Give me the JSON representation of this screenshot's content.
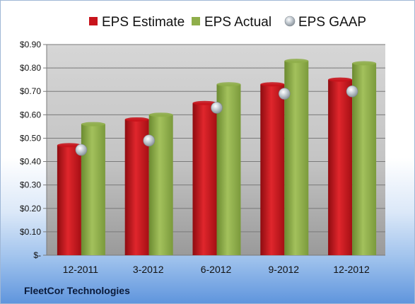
{
  "company": "FleetCor Technologies",
  "colors": {
    "estimate": "#c8141c",
    "actual": "#8fae4a",
    "gaap": "#b8c2cc"
  },
  "chart_data": {
    "type": "bar",
    "categories": [
      "12-2011",
      "3-2012",
      "6-2012",
      "9-2012",
      "12-2012"
    ],
    "series": [
      {
        "name": "EPS Estimate",
        "type": "bar",
        "values": [
          0.47,
          0.58,
          0.65,
          0.73,
          0.75
        ]
      },
      {
        "name": "EPS Actual",
        "type": "bar",
        "values": [
          0.56,
          0.6,
          0.73,
          0.83,
          0.82
        ]
      },
      {
        "name": "EPS GAAP",
        "type": "scatter",
        "values": [
          0.45,
          0.49,
          0.63,
          0.69,
          0.7
        ]
      }
    ],
    "ylim": [
      0,
      0.9
    ],
    "yticks": [
      0,
      0.1,
      0.2,
      0.3,
      0.4,
      0.5,
      0.6,
      0.7,
      0.8,
      0.9
    ],
    "ytick_labels": [
      "$-",
      "$0.10",
      "$0.20",
      "$0.30",
      "$0.40",
      "$0.50",
      "$0.60",
      "$0.70",
      "$0.80",
      "$0.90"
    ],
    "grid": true,
    "legend_position": "top"
  }
}
